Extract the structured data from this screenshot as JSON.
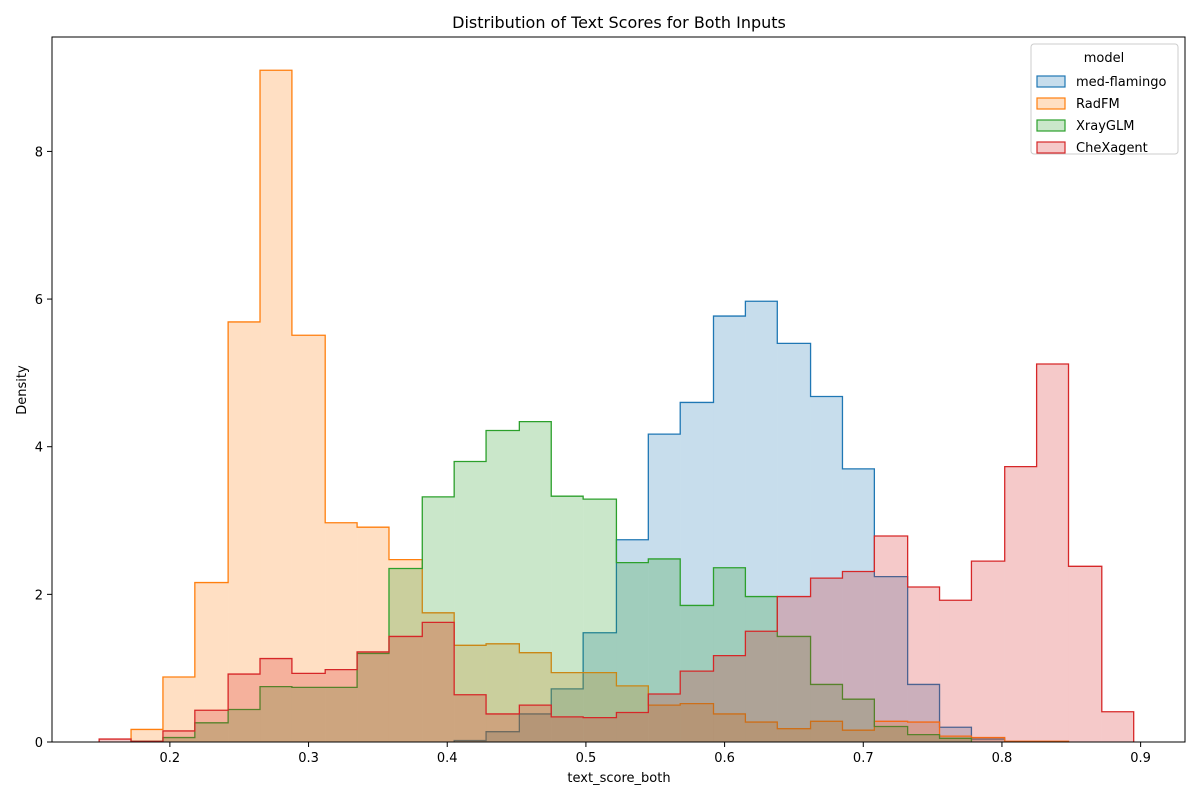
{
  "chart_data": {
    "type": "histogram-step",
    "title": "Distribution of Text Scores for Both Inputs",
    "xlabel": "text_score_both",
    "ylabel": "Density",
    "xlim": [
      0.115,
      0.932
    ],
    "ylim": [
      0,
      9.55
    ],
    "xticks": [
      0.2,
      0.3,
      0.4,
      0.5,
      0.6,
      0.7,
      0.8,
      0.9
    ],
    "xtick_labels": [
      "0.2",
      "0.3",
      "0.4",
      "0.5",
      "0.6",
      "0.7",
      "0.8",
      "0.9"
    ],
    "yticks": [
      0,
      2,
      4,
      6,
      8
    ],
    "ytick_labels": [
      "0",
      "2",
      "4",
      "6",
      "8"
    ],
    "grid": false,
    "legend": {
      "title": "model",
      "placement": "top-right"
    },
    "series": [
      {
        "name": "med-flamingo",
        "color": "#1f77b4",
        "edges": [
          0.405,
          0.428,
          0.452,
          0.475,
          0.498,
          0.522,
          0.545,
          0.568,
          0.592,
          0.615,
          0.638,
          0.662,
          0.685,
          0.708,
          0.732,
          0.755,
          0.778,
          0.802
        ],
        "values": [
          0.02,
          0.14,
          0.38,
          0.72,
          1.48,
          2.74,
          4.17,
          4.6,
          5.77,
          5.97,
          5.4,
          4.68,
          3.7,
          2.24,
          0.78,
          0.2,
          0.04
        ]
      },
      {
        "name": "RadFM",
        "color": "#ff7f0e",
        "edges": [
          0.172,
          0.195,
          0.218,
          0.242,
          0.265,
          0.288,
          0.312,
          0.335,
          0.358,
          0.382,
          0.405,
          0.428,
          0.452,
          0.475,
          0.498,
          0.522,
          0.545,
          0.568,
          0.592,
          0.615,
          0.638,
          0.662,
          0.685,
          0.708,
          0.732,
          0.755,
          0.778,
          0.802,
          0.825,
          0.848
        ],
        "values": [
          0.17,
          0.88,
          2.16,
          5.69,
          9.1,
          5.51,
          2.97,
          2.91,
          2.47,
          1.75,
          1.31,
          1.33,
          1.21,
          0.94,
          0.94,
          0.76,
          0.5,
          0.52,
          0.38,
          0.27,
          0.18,
          0.28,
          0.16,
          0.28,
          0.27,
          0.08,
          0.06,
          0.01,
          0.01
        ]
      },
      {
        "name": "XrayGLM",
        "color": "#2ca02c",
        "edges": [
          0.172,
          0.195,
          0.218,
          0.242,
          0.265,
          0.288,
          0.312,
          0.335,
          0.358,
          0.382,
          0.405,
          0.428,
          0.452,
          0.475,
          0.498,
          0.522,
          0.545,
          0.568,
          0.592,
          0.615,
          0.638,
          0.662,
          0.685,
          0.708,
          0.732,
          0.755,
          0.778
        ],
        "values": [
          0.01,
          0.06,
          0.26,
          0.44,
          0.75,
          0.74,
          0.74,
          1.2,
          2.35,
          3.32,
          3.8,
          4.22,
          4.34,
          3.33,
          3.29,
          2.43,
          2.48,
          1.85,
          2.36,
          1.97,
          1.43,
          0.78,
          0.58,
          0.21,
          0.1,
          0.05
        ]
      },
      {
        "name": "CheXagent",
        "color": "#d62728",
        "edges": [
          0.149,
          0.172,
          0.195,
          0.218,
          0.242,
          0.265,
          0.288,
          0.312,
          0.335,
          0.358,
          0.382,
          0.405,
          0.428,
          0.452,
          0.475,
          0.498,
          0.522,
          0.545,
          0.568,
          0.592,
          0.615,
          0.638,
          0.662,
          0.685,
          0.708,
          0.732,
          0.755,
          0.778,
          0.802,
          0.825,
          0.848,
          0.872,
          0.895
        ],
        "values": [
          0.04,
          0.01,
          0.15,
          0.43,
          0.92,
          1.13,
          0.93,
          0.98,
          1.22,
          1.43,
          1.62,
          0.64,
          0.38,
          0.5,
          0.34,
          0.33,
          0.4,
          0.65,
          0.96,
          1.17,
          1.5,
          1.97,
          2.22,
          2.31,
          2.79,
          2.1,
          1.92,
          2.45,
          3.73,
          5.12,
          2.38,
          0.41
        ]
      }
    ]
  }
}
